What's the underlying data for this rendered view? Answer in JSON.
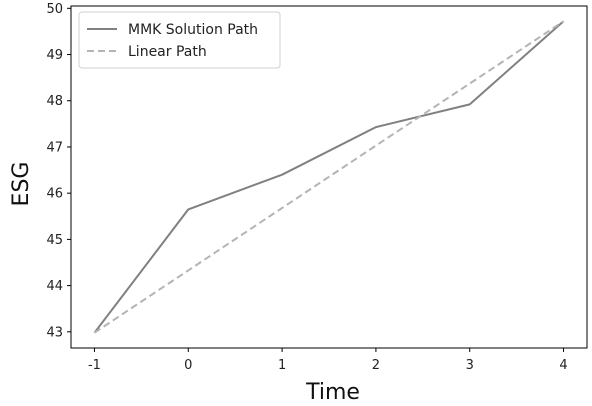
{
  "chart_data": {
    "type": "line",
    "title": "",
    "xlabel": "Time",
    "ylabel": "ESG",
    "x": [
      -1,
      0,
      1,
      2,
      3,
      4
    ],
    "x_tick_labels": [
      "-1",
      "0",
      "1",
      "2",
      "3",
      "4"
    ],
    "y_ticks": [
      43,
      44,
      45,
      46,
      47,
      48,
      49,
      50
    ],
    "xlim": [
      -1.25,
      4.25
    ],
    "ylim": [
      42.65,
      50.05
    ],
    "grid": false,
    "legend_position": "upper-left",
    "series": [
      {
        "name": "MMK Solution Path",
        "values": [
          42.98,
          45.65,
          46.4,
          47.43,
          47.92,
          49.72
        ],
        "color": "#808080",
        "dash": "solid"
      },
      {
        "name": "Linear Path",
        "values": [
          42.98,
          44.33,
          45.68,
          47.03,
          48.37,
          49.72
        ],
        "color": "#b4b4b4",
        "dash": "dashed"
      }
    ]
  }
}
